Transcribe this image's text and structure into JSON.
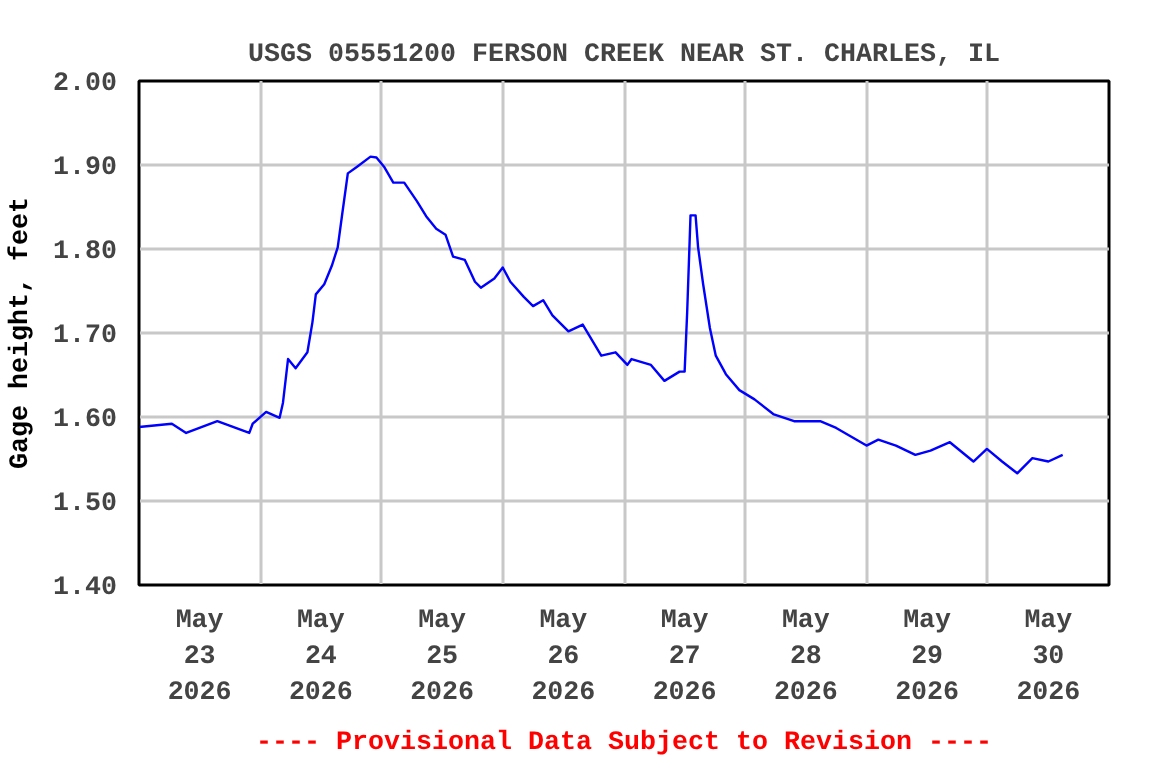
{
  "chart_data": {
    "type": "line",
    "title": "USGS 05551200 FERSON CREEK NEAR ST. CHARLES, IL",
    "ylabel": "Gage height, feet",
    "annotations": [
      "---- Provisional Data Subject to Revision ----"
    ],
    "xlim": [
      "2026-05-23T00:00",
      "2026-05-31T00:00"
    ],
    "xticks": [
      {
        "value": "2026-05-23T12:00",
        "label": "May\n23\n2026"
      },
      {
        "value": "2026-05-24T12:00",
        "label": "May\n24\n2026"
      },
      {
        "value": "2026-05-25T12:00",
        "label": "May\n25\n2026"
      },
      {
        "value": "2026-05-26T12:00",
        "label": "May\n26\n2026"
      },
      {
        "value": "2026-05-27T12:00",
        "label": "May\n27\n2026"
      },
      {
        "value": "2026-05-28T12:00",
        "label": "May\n28\n2026"
      },
      {
        "value": "2026-05-29T12:00",
        "label": "May\n29\n2026"
      },
      {
        "value": "2026-05-30T12:00",
        "label": "May\n30\n2026"
      },
      {
        "value": "2026-05-24T00:00",
        "label": null
      },
      {
        "value": "2026-05-25T00:00",
        "label": null
      },
      {
        "value": "2026-05-26T00:00",
        "label": null
      },
      {
        "value": "2026-05-27T00:00",
        "label": null
      },
      {
        "value": "2026-05-28T00:00",
        "label": null
      },
      {
        "value": "2026-05-29T00:00",
        "label": null
      },
      {
        "value": "2026-05-30T00:00",
        "label": null
      }
    ],
    "ylim": [
      1.4,
      2.0
    ],
    "yticks": [
      {
        "value": 1.4,
        "label": "1.40"
      },
      {
        "value": 1.5,
        "label": "1.50"
      },
      {
        "value": 1.6,
        "label": "1.60"
      },
      {
        "value": 1.7,
        "label": "1.70"
      },
      {
        "value": 1.8,
        "label": "1.80"
      },
      {
        "value": 1.9,
        "label": "1.90"
      },
      {
        "value": 2.0,
        "label": "2.00"
      }
    ],
    "grid": true,
    "marker": "none",
    "line_style": "solid",
    "series": [
      {
        "color": "#0000ff",
        "x": [
          "2026-05-23T00:00",
          "2026-05-23T06:30",
          "2026-05-23T09:20",
          "2026-05-23T15:30",
          "2026-05-23T21:50",
          "2026-05-23T22:30",
          "2026-05-24T01:10",
          "2026-05-24T03:50",
          "2026-05-24T04:30",
          "2026-05-24T05:30",
          "2026-05-24T07:00",
          "2026-05-24T09:20",
          "2026-05-24T10:20",
          "2026-05-24T11:00",
          "2026-05-24T12:40",
          "2026-05-24T14:10",
          "2026-05-24T15:20",
          "2026-05-24T16:10",
          "2026-05-24T17:20",
          "2026-05-24T19:10",
          "2026-05-24T21:50",
          "2026-05-24T23:00",
          "2026-05-25T00:30",
          "2026-05-25T02:20",
          "2026-05-25T04:30",
          "2026-05-25T07:00",
          "2026-05-25T08:50",
          "2026-05-25T10:50",
          "2026-05-25T12:40",
          "2026-05-25T14:10",
          "2026-05-25T16:30",
          "2026-05-25T18:30",
          "2026-05-25T19:40",
          "2026-05-25T22:20",
          "2026-05-26T00:00",
          "2026-05-26T01:30",
          "2026-05-26T04:10",
          "2026-05-26T06:00",
          "2026-05-26T08:00",
          "2026-05-26T09:50",
          "2026-05-26T13:00",
          "2026-05-26T15:50",
          "2026-05-26T19:30",
          "2026-05-26T22:20",
          "2026-05-27T00:40",
          "2026-05-27T01:30",
          "2026-05-27T05:20",
          "2026-05-27T08:00",
          "2026-05-27T11:00",
          "2026-05-27T12:00",
          "2026-05-27T12:30",
          "2026-05-27T13:10",
          "2026-05-27T14:10",
          "2026-05-27T14:40",
          "2026-05-27T15:40",
          "2026-05-27T17:00",
          "2026-05-27T18:10",
          "2026-05-27T20:10",
          "2026-05-27T22:50",
          "2026-05-28T01:50",
          "2026-05-28T05:40",
          "2026-05-28T09:40",
          "2026-05-28T14:50",
          "2026-05-28T18:00",
          "2026-05-29T00:00",
          "2026-05-29T02:20",
          "2026-05-29T05:50",
          "2026-05-29T09:40",
          "2026-05-29T12:40",
          "2026-05-29T16:30",
          "2026-05-29T21:10",
          "2026-05-29T23:50",
          "2026-05-30T02:50",
          "2026-05-30T05:50",
          "2026-05-30T08:50",
          "2026-05-30T12:00",
          "2026-05-30T14:50"
        ],
        "values": [
          1.588,
          1.592,
          1.581,
          1.595,
          1.581,
          1.592,
          1.606,
          1.599,
          1.617,
          1.669,
          1.658,
          1.677,
          1.713,
          1.746,
          1.758,
          1.78,
          1.802,
          1.839,
          1.89,
          1.898,
          1.91,
          1.909,
          1.898,
          1.879,
          1.879,
          1.857,
          1.839,
          1.824,
          1.817,
          1.791,
          1.787,
          1.761,
          1.754,
          1.765,
          1.778,
          1.761,
          1.743,
          1.732,
          1.739,
          1.721,
          1.702,
          1.71,
          1.673,
          1.677,
          1.662,
          1.669,
          1.662,
          1.643,
          1.654,
          1.654,
          1.724,
          1.84,
          1.84,
          1.802,
          1.758,
          1.706,
          1.673,
          1.651,
          1.632,
          1.621,
          1.603,
          1.595,
          1.595,
          1.587,
          1.566,
          1.573,
          1.566,
          1.555,
          1.56,
          1.57,
          1.547,
          1.562,
          1.547,
          1.533,
          1.551,
          1.547,
          1.555
        ]
      }
    ]
  }
}
